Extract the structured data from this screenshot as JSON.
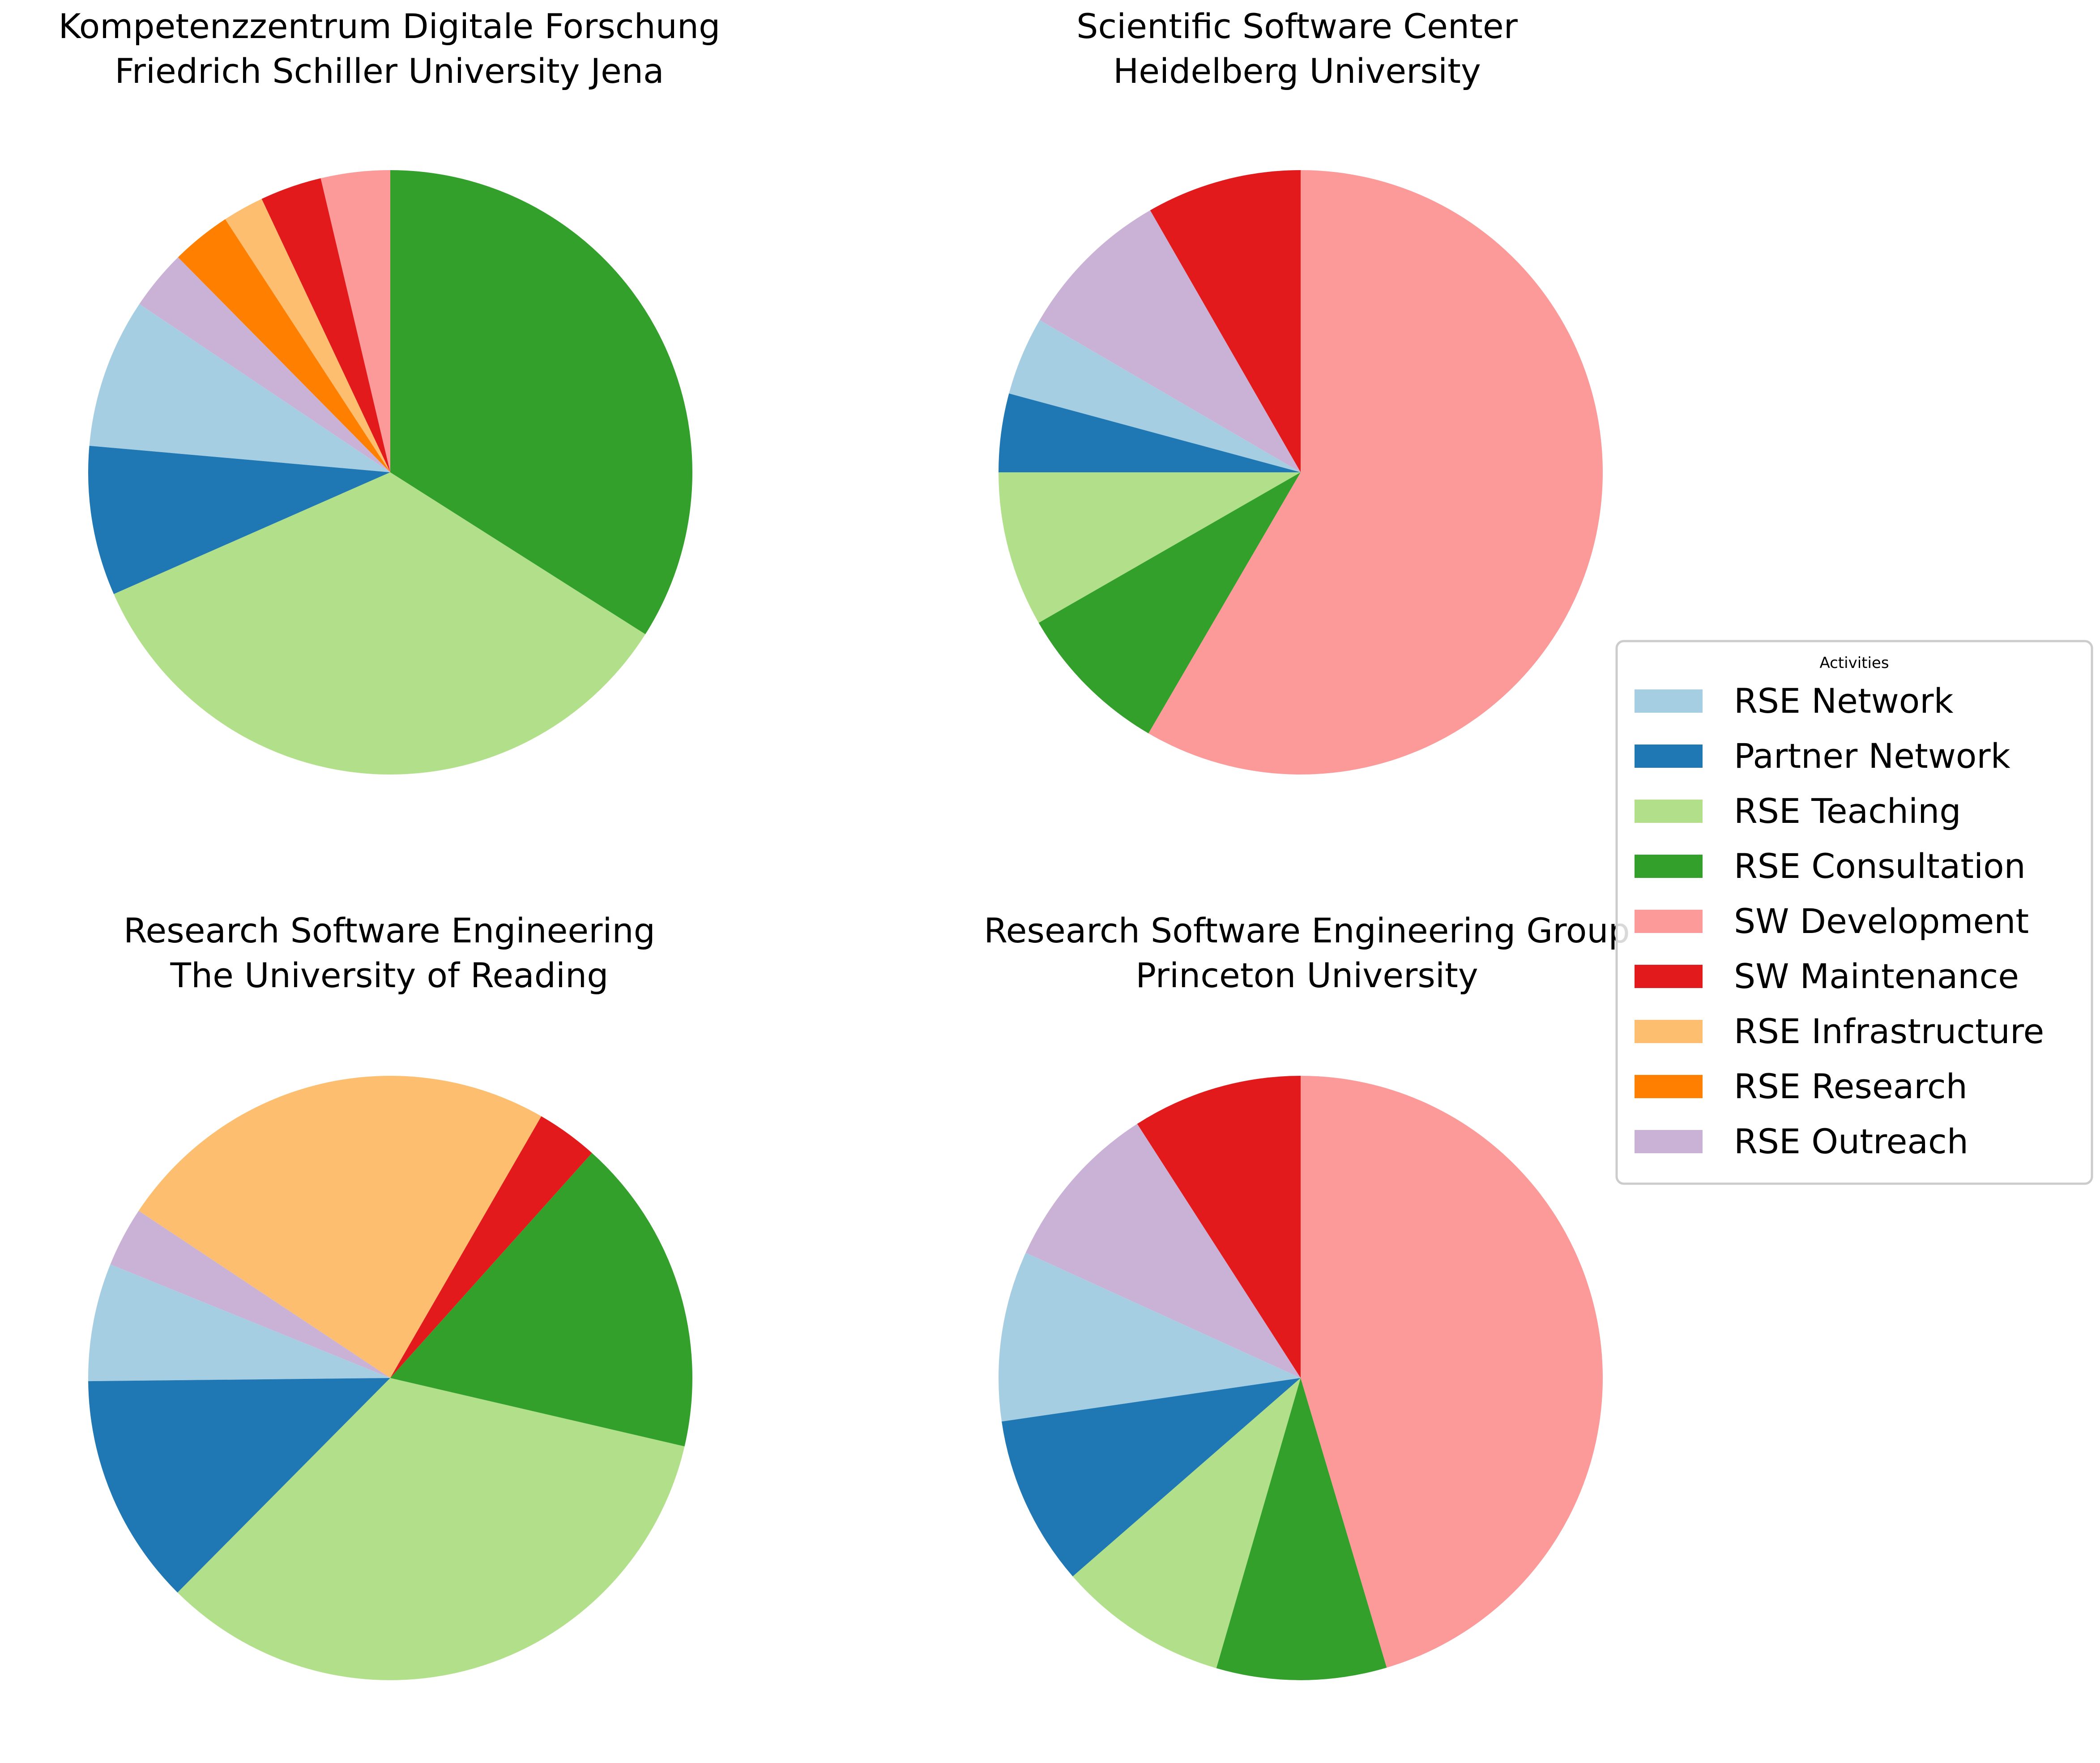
{
  "colors": {
    "RSE Network": "#a6cee3",
    "Partner Network": "#1f78b4",
    "RSE Teaching": "#b2df8a",
    "RSE Consultation": "#33a02c",
    "SW Development": "#fb9a99",
    "SW Maintenance": "#e31a1c",
    "RSE Infrastructure": "#fdbf6f",
    "RSE Research": "#ff7f00",
    "RSE Outreach": "#cab2d6"
  },
  "legend": {
    "title": "Activities",
    "items": [
      "RSE Network",
      "Partner Network",
      "RSE Teaching",
      "RSE Consultation",
      "SW Development",
      "SW Maintenance",
      "RSE Infrastructure",
      "RSE Research",
      "RSE Outreach"
    ],
    "placement": "center-right"
  },
  "chart_data": [
    {
      "type": "pie",
      "title": [
        "Kompetenzzentrum Digitale Forschung",
        "Friedrich Schiller University Jena"
      ],
      "start_angle_deg": 90,
      "direction": "counterclockwise",
      "categories": [
        "SW Development",
        "SW Maintenance",
        "RSE Infrastructure",
        "RSE Research",
        "RSE Outreach",
        "RSE Network",
        "Partner Network",
        "RSE Teaching",
        "RSE Consultation"
      ],
      "values": [
        3.7,
        3.3,
        2.2,
        3.2,
        3.2,
        8.0,
        8.0,
        34.4,
        34.0
      ]
    },
    {
      "type": "pie",
      "title": [
        "Scientific Software Center",
        "Heidelberg University"
      ],
      "start_angle_deg": 90,
      "direction": "counterclockwise",
      "categories": [
        "SW Maintenance",
        "RSE Outreach",
        "RSE Network",
        "Partner Network",
        "RSE Teaching",
        "RSE Consultation",
        "SW Development"
      ],
      "values": [
        8.3,
        8.3,
        4.2,
        4.2,
        8.3,
        8.3,
        58.4
      ]
    },
    {
      "type": "pie",
      "title": [
        "Research Software Engineering",
        "The University of Reading"
      ],
      "start_angle_deg": 60,
      "direction": "counterclockwise",
      "categories": [
        "RSE Infrastructure",
        "RSE Outreach",
        "RSE Network",
        "Partner Network",
        "RSE Teaching",
        "RSE Consultation",
        "SW Maintenance"
      ],
      "values": [
        24.0,
        3.2,
        6.3,
        12.4,
        33.8,
        17.0,
        3.3
      ]
    },
    {
      "type": "pie",
      "title": [
        "Research Software Engineering Group",
        "Princeton University"
      ],
      "start_angle_deg": 90,
      "direction": "counterclockwise",
      "categories": [
        "SW Maintenance",
        "RSE Outreach",
        "RSE Network",
        "Partner Network",
        "RSE Teaching",
        "RSE Consultation",
        "SW Development"
      ],
      "values": [
        9.1,
        9.1,
        9.1,
        9.1,
        9.1,
        9.1,
        45.4
      ]
    }
  ]
}
